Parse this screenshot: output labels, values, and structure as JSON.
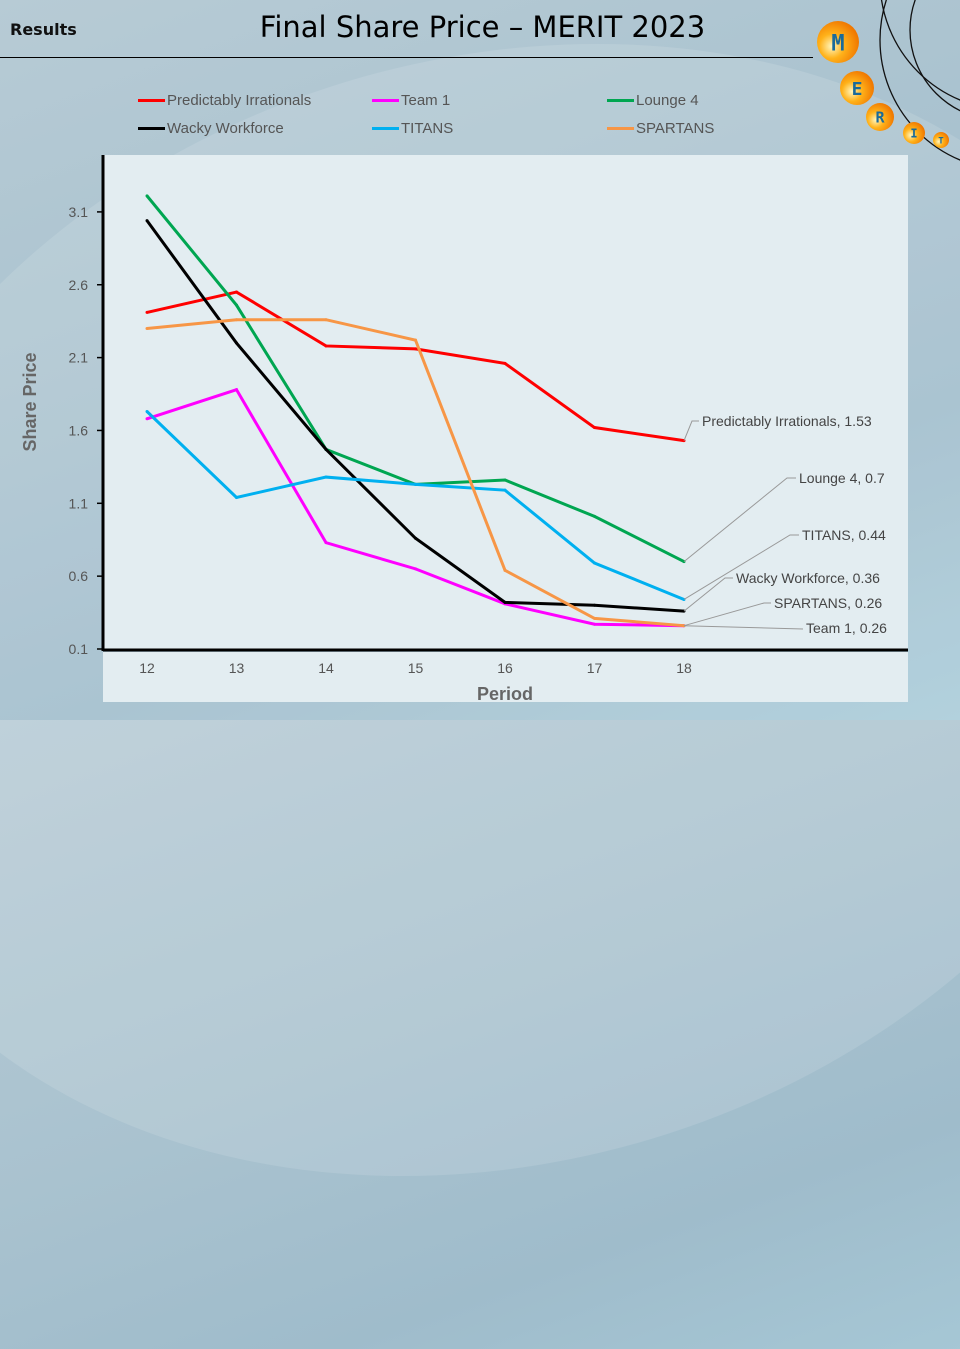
{
  "header": {
    "section": "Results",
    "title": "Final Share Price – MERIT 2023"
  },
  "logo": {
    "letters": [
      "M",
      "E",
      "R",
      "I",
      "T"
    ],
    "color": "#f59a10"
  },
  "chart_data": {
    "type": "line",
    "title": "",
    "xlabel": "Period",
    "ylabel": "Share Price",
    "categories": [
      "12",
      "13",
      "14",
      "15",
      "16",
      "17",
      "18"
    ],
    "yticks": [
      "0.1",
      "0.6",
      "1.1",
      "1.6",
      "2.1",
      "2.6",
      "3.1"
    ],
    "ylim": [
      0.1,
      3.5
    ],
    "grid": false,
    "legend": "top",
    "series": [
      {
        "name": "Predictably Irrationals",
        "color": "#ff0000",
        "values": [
          2.41,
          2.55,
          2.18,
          2.16,
          2.06,
          1.62,
          1.53
        ],
        "label": "Predictably Irrationals,  1.53"
      },
      {
        "name": "Team 1",
        "color": "#ff00ff",
        "values": [
          1.68,
          1.88,
          0.83,
          0.65,
          0.41,
          0.27,
          0.26
        ],
        "label": "Team 1, 0.26"
      },
      {
        "name": "Lounge 4",
        "color": "#00a651",
        "values": [
          3.21,
          2.46,
          1.47,
          1.23,
          1.26,
          1.01,
          0.7
        ],
        "label": "Lounge 4, 0.7"
      },
      {
        "name": "Wacky Workforce",
        "color": "#000000",
        "values": [
          3.04,
          2.2,
          1.47,
          0.86,
          0.42,
          0.4,
          0.36
        ],
        "label": "Wacky Workforce, 0.36"
      },
      {
        "name": "TITANS",
        "color": "#00b0f0",
        "values": [
          1.73,
          1.14,
          1.28,
          1.23,
          1.19,
          0.69,
          0.44
        ],
        "label": "TITANS,  0.44"
      },
      {
        "name": "SPARTANS",
        "color": "#f79646",
        "values": [
          2.3,
          2.36,
          2.36,
          2.22,
          0.64,
          0.31,
          0.26
        ],
        "label": "SPARTANS, 0.26"
      }
    ]
  }
}
